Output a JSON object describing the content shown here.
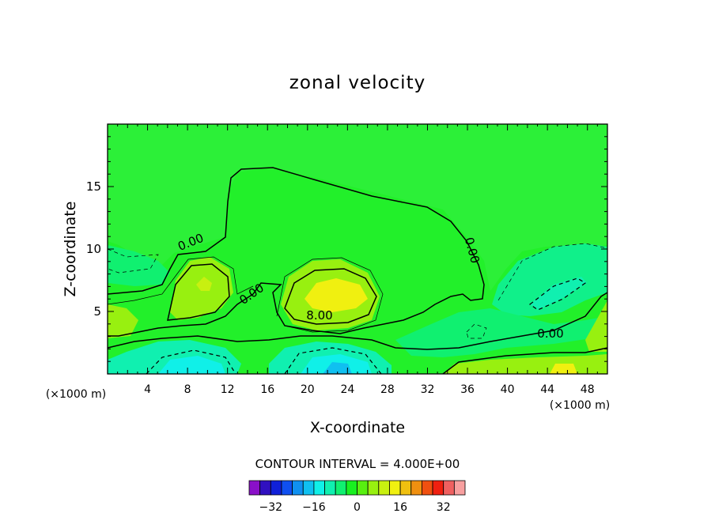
{
  "chart_data": {
    "type": "contour",
    "title": "zonal velocity",
    "xlabel": "X-coordinate",
    "ylabel": "Z-coordinate",
    "x_unit": "(×1000 m)",
    "z_unit": "(×1000 m)",
    "xlim": [
      0,
      50
    ],
    "ylim": [
      0,
      20
    ],
    "x_ticks": [
      4,
      8,
      12,
      16,
      20,
      24,
      28,
      32,
      36,
      40,
      44,
      48
    ],
    "y_ticks": [
      5,
      10,
      15
    ],
    "contour_interval_text": "CONTOUR INTERVAL = 4.000E+00",
    "contour_labels": [
      "0.00",
      "0.00",
      "0.00",
      "8.00",
      "0.00"
    ],
    "colorbar": {
      "levels": [
        -40,
        -36,
        -32,
        -28,
        -24,
        -20,
        -16,
        -12,
        -8,
        -4,
        0,
        4,
        8,
        12,
        16,
        20,
        24,
        28,
        32,
        36,
        40
      ],
      "colors": [
        "#8a10c8",
        "#3010c0",
        "#1020d8",
        "#1050f0",
        "#1090f0",
        "#10c0f0",
        "#10f0e8",
        "#10f0b0",
        "#10f070",
        "#18f020",
        "#58f010",
        "#98f010",
        "#c8f010",
        "#f0f010",
        "#f0c010",
        "#f09010",
        "#f05010",
        "#f02010",
        "#f06060",
        "#f8a0a0"
      ],
      "tick_labels": [
        "-32",
        "-16",
        "0",
        "16",
        "32"
      ],
      "tick_values": [
        -32,
        -16,
        0,
        16,
        32
      ]
    }
  }
}
